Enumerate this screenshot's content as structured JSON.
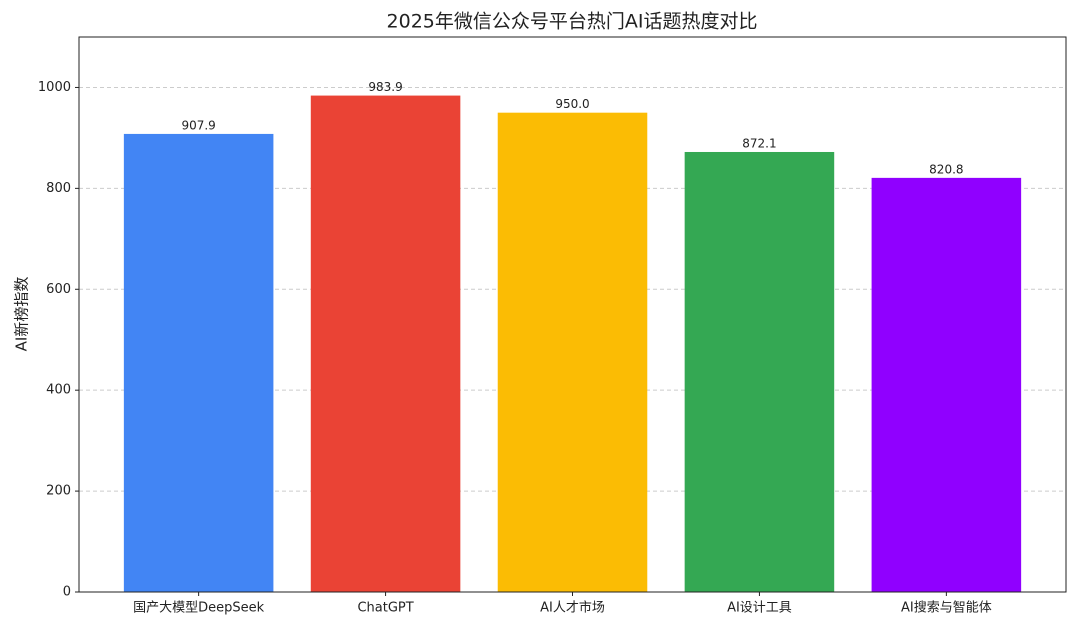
{
  "chart_data": {
    "type": "bar",
    "title": "2025年微信公众号平台热门AI话题热度对比",
    "y_label": "AI新榜指数",
    "categories": [
      "国产大模型DeepSeek",
      "ChatGPT",
      "AI人才市场",
      "AI设计工具",
      "AI搜索与智能体"
    ],
    "values": [
      907.9,
      983.9,
      950.0,
      872.1,
      820.8
    ],
    "value_labels": [
      "907.9",
      "983.9",
      "950.0",
      "872.1",
      "820.8"
    ],
    "colors": [
      "#4285f4",
      "#ea4335",
      "#fbbc04",
      "#34a853",
      "#9000ff"
    ],
    "ylim": [
      0,
      1100
    ],
    "yticks": [
      0,
      200,
      400,
      600,
      800,
      1000
    ],
    "grid": true
  }
}
